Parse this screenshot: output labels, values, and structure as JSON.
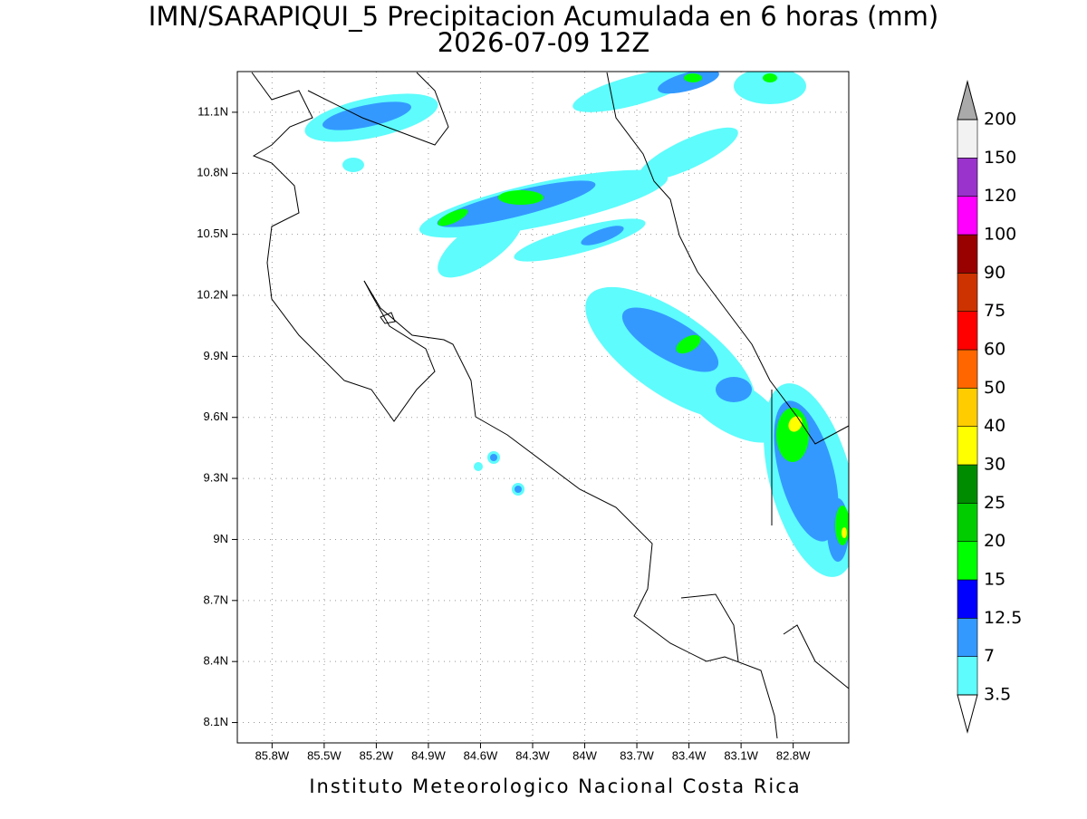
{
  "map": {
    "title": "IMN/SARAPIQUI_5 Precipitacion Acumulada en 6 horas (mm)",
    "subtitle": "2026-07-09 12Z",
    "footer": "Instituto Meteorologico Nacional Costa Rica",
    "xlim": [
      -86.0,
      -82.48
    ],
    "ylim": [
      8.0,
      11.3
    ],
    "xticks": [
      {
        "value": -85.8,
        "label": "85.8W"
      },
      {
        "value": -85.5,
        "label": "85.5W"
      },
      {
        "value": -85.2,
        "label": "85.2W"
      },
      {
        "value": -84.9,
        "label": "84.9W"
      },
      {
        "value": -84.6,
        "label": "84.6W"
      },
      {
        "value": -84.3,
        "label": "84.3W"
      },
      {
        "value": -84.0,
        "label": "84W"
      },
      {
        "value": -83.7,
        "label": "83.7W"
      },
      {
        "value": -83.4,
        "label": "83.4W"
      },
      {
        "value": -83.1,
        "label": "83.1W"
      },
      {
        "value": -82.8,
        "label": "82.8W"
      }
    ],
    "yticks": [
      {
        "value": 8.1,
        "label": "8.1N"
      },
      {
        "value": 8.4,
        "label": "8.4N"
      },
      {
        "value": 8.7,
        "label": "8.7N"
      },
      {
        "value": 9.0,
        "label": "9N"
      },
      {
        "value": 9.3,
        "label": "9.3N"
      },
      {
        "value": 9.6,
        "label": "9.6N"
      },
      {
        "value": 9.9,
        "label": "9.9N"
      },
      {
        "value": 10.2,
        "label": "10.2N"
      },
      {
        "value": 10.5,
        "label": "10.5N"
      },
      {
        "value": 10.8,
        "label": "10.8N"
      },
      {
        "value": 11.1,
        "label": "11.1N"
      }
    ],
    "grid": true,
    "colorbar": {
      "levels": [
        3.5,
        7,
        12.5,
        15,
        20,
        25,
        30,
        40,
        50,
        60,
        75,
        90,
        100,
        120,
        150,
        200
      ],
      "colors": [
        "#5efcfc",
        "#3399ff",
        "#0000ff",
        "#00ff00",
        "#00cc00",
        "#008c00",
        "#ffff00",
        "#ffcc00",
        "#ff6600",
        "#ff0000",
        "#cc3300",
        "#990000",
        "#ff00ff",
        "#9933cc",
        "#f2f2f2"
      ],
      "under_color": "#ffffff",
      "over_color": "#aaaaaa"
    }
  }
}
